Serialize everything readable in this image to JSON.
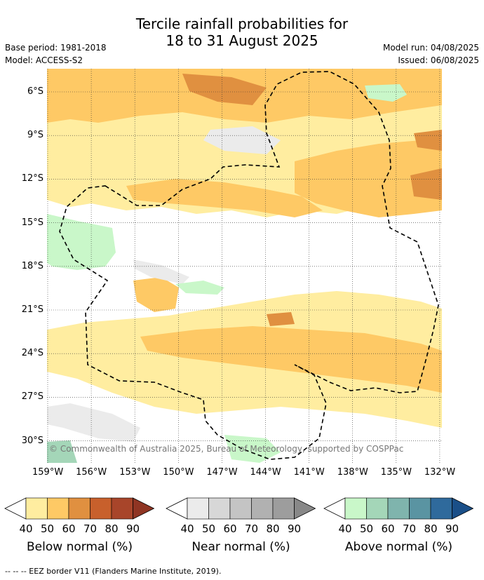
{
  "header": {
    "title_line1": "Tercile rainfall probabilities for",
    "title_line2": "18 to 31 August 2025",
    "base_period": "Base period: 1981-2018",
    "model": "Model: ACCESS-S2",
    "model_run": "Model run: 04/08/2025",
    "issued": "Issued: 06/08/2025"
  },
  "map": {
    "lat_labels": [
      "6°S",
      "9°S",
      "12°S",
      "15°S",
      "18°S",
      "21°S",
      "24°S",
      "27°S",
      "30°S"
    ],
    "lon_labels": [
      "159°W",
      "156°W",
      "153°W",
      "150°W",
      "147°W",
      "144°W",
      "141°W",
      "138°W",
      "135°W",
      "132°W"
    ],
    "copyright": "© Commonwealth of Australia 2025, Bureau of Meteorology, supported by COSPPac"
  },
  "legend": {
    "ticks": [
      "40",
      "50",
      "60",
      "70",
      "80",
      "90"
    ],
    "below": {
      "label": "Below normal (%)",
      "colors": [
        "#ffeda0",
        "#fec965",
        "#e09040",
        "#c8602c",
        "#a8452a",
        "#8f3523"
      ]
    },
    "near": {
      "label": "Near normal (%)",
      "colors": [
        "#ebebeb",
        "#d7d7d7",
        "#c4c4c4",
        "#b1b1b1",
        "#9d9d9d",
        "#888888"
      ]
    },
    "above": {
      "label": "Above normal (%)",
      "colors": [
        "#c9f7c9",
        "#a4d6b8",
        "#7fb4ad",
        "#5a94a2",
        "#2f6a9c",
        "#1a4f88"
      ]
    }
  },
  "footer": "-- -- -- EEZ border V11 (Flanders Marine Institute, 2019)."
}
